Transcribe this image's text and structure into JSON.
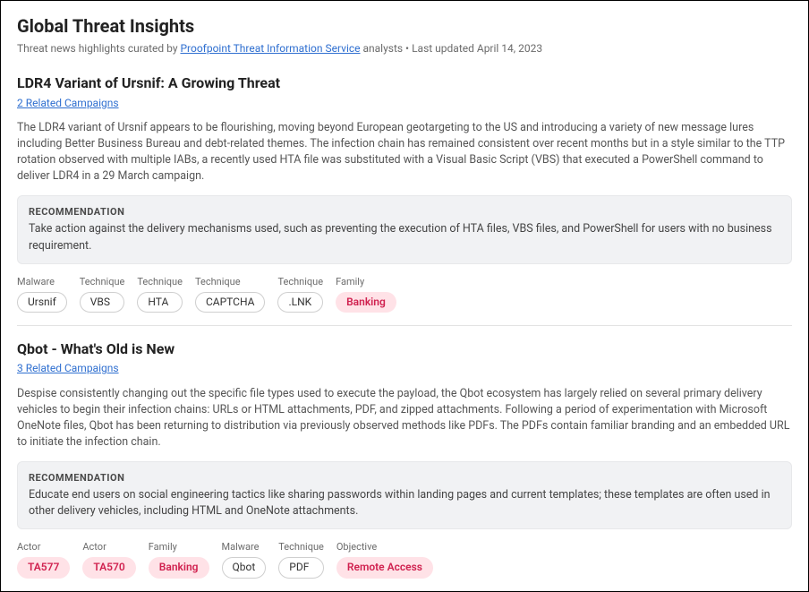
{
  "header": {
    "title": "Global Threat Insights",
    "subtitle_prefix": "Threat news highlights curated by ",
    "subtitle_link": "Proofpoint Threat Information Service",
    "subtitle_mid": " analysts • Last updated ",
    "last_updated": "April 14, 2023"
  },
  "articles": [
    {
      "title": "LDR4 Variant of Ursnif: A Growing Threat",
      "related": "2 Related Campaigns",
      "body": "The LDR4 variant of Ursnif appears to be flourishing, moving beyond European geotargeting to the US and introducing a variety of new message lures including Better Business Bureau and debt-related themes. The infection chain has remained consistent over recent months but in a style similar to the TTP rotation observed with multiple IABs, a recently used HTA file was substituted with a Visual Basic Script (VBS) that executed a PowerShell command to deliver LDR4 in a 29 March campaign.",
      "reco_label": "RECOMMENDATION",
      "reco_text": "Take action against the delivery mechanisms used, such as preventing the execution of HTA files, VBS files, and PowerShell for users with no business requirement.",
      "tags": [
        {
          "category": "Malware",
          "label": "Ursnif",
          "style": "gray"
        },
        {
          "category": "Technique",
          "label": "VBS",
          "style": "gray"
        },
        {
          "category": "Technique",
          "label": "HTA",
          "style": "gray"
        },
        {
          "category": "Technique",
          "label": "CAPTCHA",
          "style": "gray"
        },
        {
          "category": "Technique",
          "label": ".LNK",
          "style": "gray"
        },
        {
          "category": "Family",
          "label": "Banking",
          "style": "pink"
        }
      ]
    },
    {
      "title": "Qbot - What's Old is New",
      "related": "3 Related Campaigns",
      "body": "Despise consistently changing out the specific file types used to execute the payload, the Qbot ecosystem has largely relied on several primary delivery vehicles to begin their infection chains: URLs or HTML attachments, PDF, and zipped attachments. Following a period of experimentation with Microsoft OneNote files, Qbot has been returning to distribution via previously observed methods like PDFs. The PDFs contain familiar branding and an embedded URL to initiate the infection chain.",
      "reco_label": "RECOMMENDATION",
      "reco_text": "Educate end users on social engineering tactics like sharing passwords within landing pages and current templates; these templates are often used in other delivery vehicles, including HTML and OneNote attachments.",
      "tags": [
        {
          "category": "Actor",
          "label": "TA577",
          "style": "pink"
        },
        {
          "category": "Actor",
          "label": "TA570",
          "style": "pink"
        },
        {
          "category": "Family",
          "label": "Banking",
          "style": "pink"
        },
        {
          "category": "Malware",
          "label": "Qbot",
          "style": "gray"
        },
        {
          "category": "Technique",
          "label": "PDF",
          "style": "gray"
        },
        {
          "category": "Objective",
          "label": "Remote Access",
          "style": "pink"
        }
      ]
    }
  ],
  "colors": {
    "link": "#2f6fd0",
    "pink_bg": "#ffe2e7",
    "pink_text": "#d0214f",
    "gray_border": "#cfcfcf",
    "reco_bg": "#f1f2f4"
  }
}
